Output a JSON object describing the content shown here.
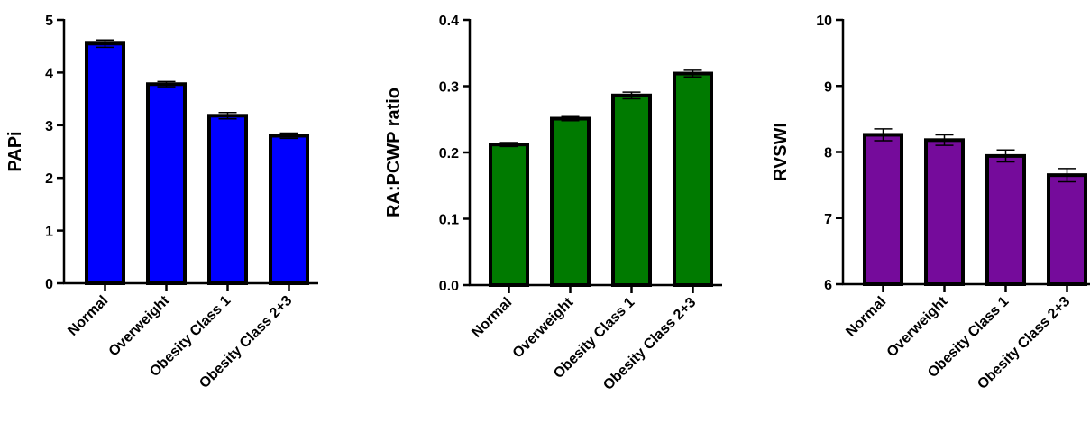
{
  "chart_data": [
    {
      "type": "bar",
      "ylabel": "PAPi",
      "ylim": [
        0,
        5
      ],
      "yticks": [
        "0",
        "1",
        "2",
        "3",
        "4",
        "5"
      ],
      "categories": [
        "Normal",
        "Overweight",
        "Obesity Class 1",
        "Obesity Class 2+3"
      ],
      "values": [
        4.55,
        3.78,
        3.18,
        2.8
      ],
      "errors": [
        0.07,
        0.05,
        0.06,
        0.05
      ],
      "color": "#0000FF"
    },
    {
      "type": "bar",
      "ylabel": "RA:PCWP ratio",
      "ylim": [
        0,
        0.4
      ],
      "yticks": [
        "0.0",
        "0.1",
        "0.2",
        "0.3",
        "0.4"
      ],
      "categories": [
        "Normal",
        "Overweight",
        "Obesity Class 1",
        "Obesity Class 2+3"
      ],
      "values": [
        0.212,
        0.251,
        0.286,
        0.319
      ],
      "errors": [
        0.003,
        0.003,
        0.005,
        0.005
      ],
      "color": "#007A00"
    },
    {
      "type": "bar",
      "ylabel": "RVSWI",
      "ylim": [
        6,
        10
      ],
      "yticks": [
        "6",
        "7",
        "8",
        "9",
        "10"
      ],
      "categories": [
        "Normal",
        "Overweight",
        "Obesity Class 1",
        "Obesity Class 2+3"
      ],
      "values": [
        8.26,
        8.18,
        7.94,
        7.65
      ],
      "errors": [
        0.09,
        0.08,
        0.09,
        0.1
      ],
      "color": "#750B9B"
    }
  ]
}
